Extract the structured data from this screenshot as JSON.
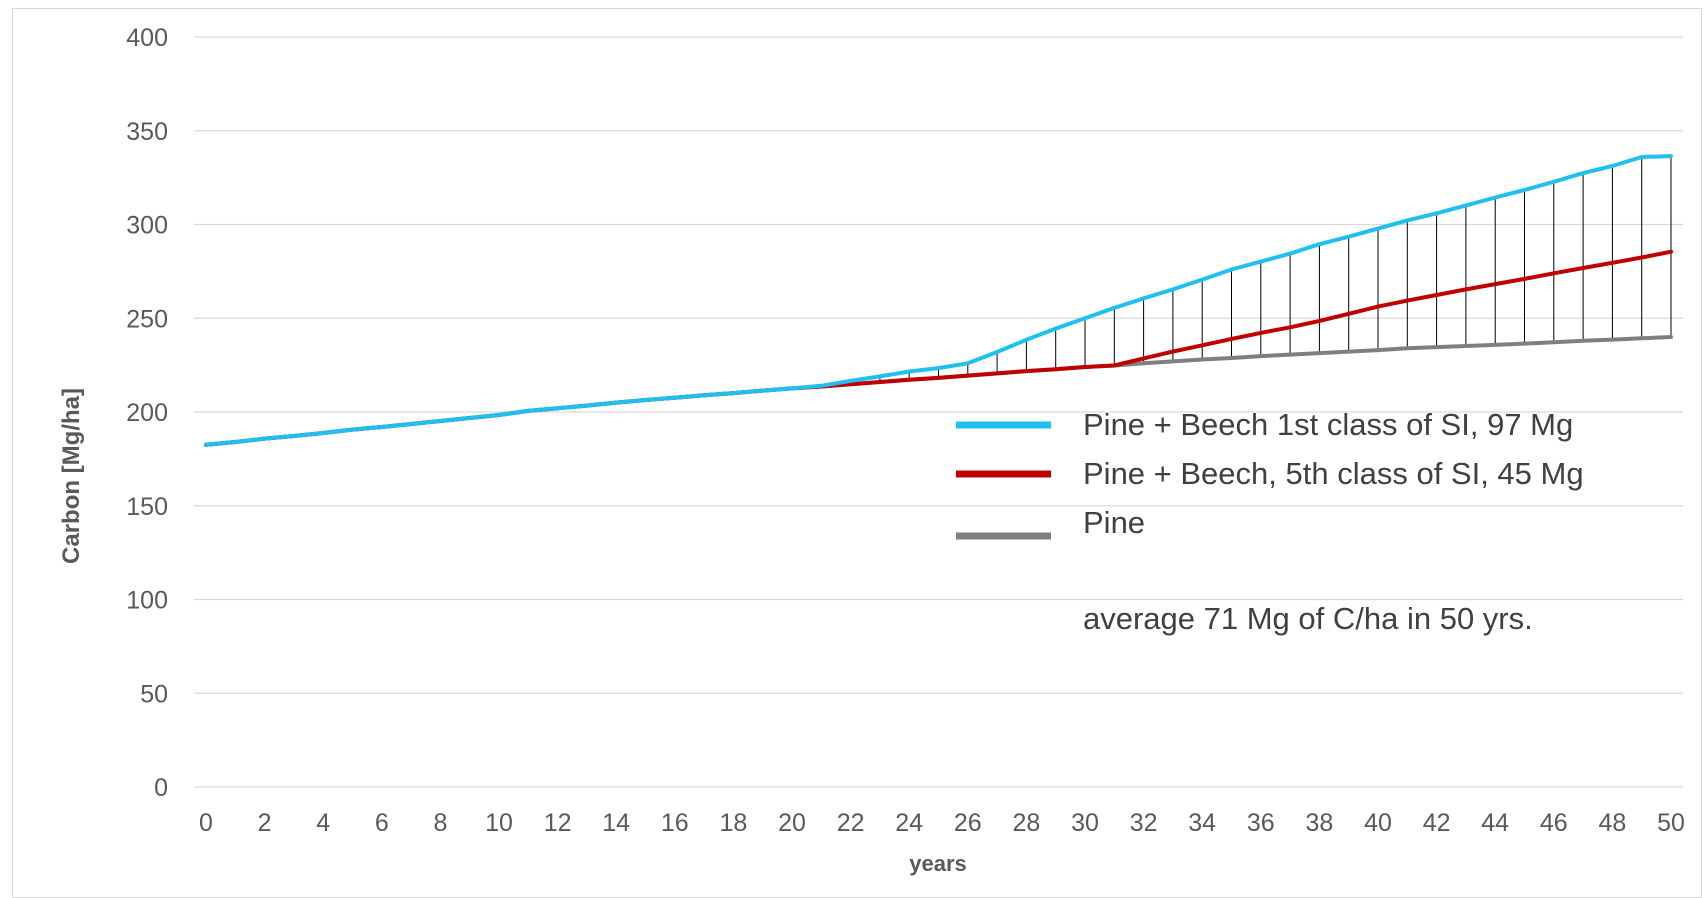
{
  "chart_data": {
    "type": "line",
    "title": "",
    "xlabel": "years",
    "ylabel": "Carbon [Mg/ha]",
    "xlim": [
      0,
      50
    ],
    "ylim": [
      0,
      400
    ],
    "y_ticks": [
      0,
      50,
      100,
      150,
      200,
      250,
      300,
      350,
      400
    ],
    "x_ticks": [
      0,
      2,
      4,
      6,
      8,
      10,
      12,
      14,
      16,
      18,
      20,
      22,
      24,
      26,
      28,
      30,
      32,
      34,
      36,
      38,
      40,
      42,
      44,
      46,
      48,
      50
    ],
    "grid": "horizontal",
    "legend_position": "center-right",
    "x": [
      0,
      1,
      2,
      3,
      4,
      5,
      6,
      7,
      8,
      9,
      10,
      11,
      12,
      13,
      14,
      15,
      16,
      17,
      18,
      19,
      20,
      21,
      22,
      23,
      24,
      25,
      26,
      27,
      28,
      29,
      30,
      31,
      32,
      33,
      34,
      35,
      36,
      37,
      38,
      39,
      40,
      41,
      42,
      43,
      44,
      45,
      46,
      47,
      48,
      49,
      50
    ],
    "series": [
      {
        "name": "Pine + Beech 1st class of SI, 97 Mg",
        "color": "#1ec0f0",
        "values": [
          182.5,
          184,
          185.8,
          187.2,
          188.8,
          190.6,
          192,
          193.6,
          195.2,
          196.8,
          198.4,
          200.6,
          202,
          203.4,
          205,
          206.4,
          207.6,
          208.9,
          210.1,
          211.4,
          212.6,
          214,
          216.6,
          219,
          221.6,
          223.4,
          226,
          232,
          238.5,
          244.5,
          250,
          255.5,
          260.6,
          265.4,
          270.6,
          276,
          280.2,
          284.5,
          289.5,
          293.5,
          297.8,
          302.2,
          306,
          310.2,
          314.4,
          318.4,
          322.8,
          327.4,
          331.2,
          336,
          336.5
        ]
      },
      {
        "name": "Pine + Beech, 5th class of SI, 45 Mg",
        "color": "#c00000",
        "values": [
          182.5,
          184,
          185.8,
          187.2,
          188.8,
          190.6,
          192,
          193.6,
          195.2,
          196.8,
          198.4,
          200.6,
          202,
          203.4,
          205,
          206.4,
          207.6,
          208.9,
          210.1,
          211.4,
          212.6,
          213.6,
          214.8,
          216,
          217.2,
          218.2,
          219.4,
          220.6,
          221.8,
          222.8,
          224,
          224.8,
          228.6,
          232.2,
          235.6,
          239,
          242.2,
          245.2,
          248.6,
          252.4,
          256.2,
          259.4,
          262.4,
          265.4,
          268.2,
          271,
          274,
          276.8,
          279.6,
          282.4,
          285.5
        ]
      },
      {
        "name": "Pine",
        "color": "#7f7f7f",
        "values": [
          182.5,
          184,
          185.8,
          187.2,
          188.8,
          190.6,
          192,
          193.6,
          195.2,
          196.8,
          198.4,
          200.6,
          202,
          203.4,
          205,
          206.4,
          207.6,
          208.9,
          210.1,
          211.4,
          212.6,
          213.6,
          214.8,
          216,
          217.2,
          218.2,
          219.4,
          220.6,
          221.8,
          222.8,
          224,
          224.8,
          226,
          227,
          228,
          228.8,
          229.8,
          230.6,
          231.4,
          232.2,
          233,
          234,
          234.6,
          235.2,
          235.8,
          236.5,
          237.2,
          238,
          238.6,
          239.3,
          240
        ]
      }
    ],
    "annotation": "average 71 Mg of C/ha in 50 yrs."
  },
  "colors": {
    "grid": "#d9d9d9",
    "hatch": "#000000",
    "axis_text": "#595959"
  }
}
